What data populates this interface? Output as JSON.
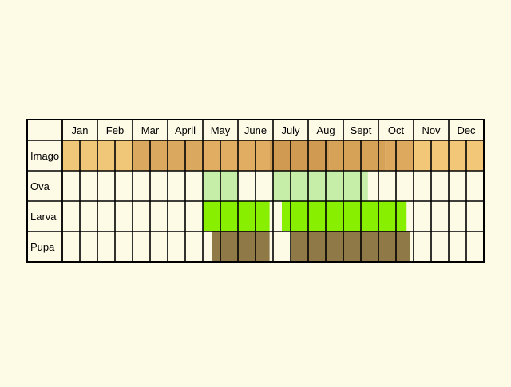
{
  "months": [
    "Jan",
    "Feb",
    "Mar",
    "Apr",
    "May",
    "June",
    "July",
    "Aug",
    "Sept",
    "Oct",
    "Nov",
    "Dec"
  ],
  "month_labels": [
    "Jan",
    "Feb",
    "Mar",
    "April",
    "May",
    "June",
    "July",
    "Aug",
    "Sept",
    "Oct",
    "Nov",
    "Dec"
  ],
  "stages": [
    {
      "label": "Imago",
      "color": "#f5c97a",
      "periods": [
        {
          "from": 0,
          "to": 2,
          "color": "#f0c779"
        },
        {
          "from": 2,
          "to": 4,
          "color": "#dba860"
        },
        {
          "from": 4,
          "to": 5.9,
          "color": "#e0ad63"
        },
        {
          "from": 5.9,
          "to": 7.6,
          "color": "#d09a52"
        },
        {
          "from": 7.6,
          "to": 9.2,
          "color": "#d6a257"
        },
        {
          "from": 9.2,
          "to": 10.0,
          "color": "#dca95e"
        },
        {
          "from": 10.0,
          "to": 12,
          "color": "#f2c878"
        }
      ]
    },
    {
      "label": "Ova",
      "color": "#c6eea8",
      "periods": [
        {
          "from": 4.0,
          "to": 5.0
        },
        {
          "from": 6.0,
          "to": 8.7
        }
      ]
    },
    {
      "label": "Larva",
      "color": "#88ef00",
      "periods": [
        {
          "from": 4.0,
          "to": 5.9
        },
        {
          "from": 6.25,
          "to": 9.8
        }
      ]
    },
    {
      "label": "Pupa",
      "color": "#8e7947",
      "periods": [
        {
          "from": 4.25,
          "to": 5.9
        },
        {
          "from": 6.5,
          "to": 9.9
        }
      ]
    }
  ],
  "cells_per_month": 2
}
